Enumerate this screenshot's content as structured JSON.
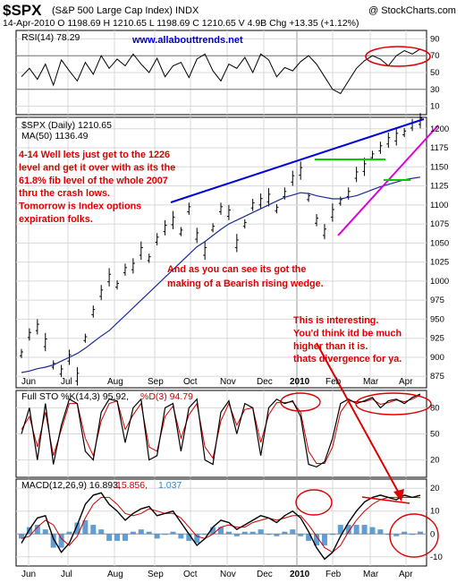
{
  "header": {
    "ticker": "$SPX",
    "name": "(S&P 500 Large Cap Index) INDX",
    "brand": "@ StockCharts.com",
    "quote": "14-Apr-2010   O 1198.69   H 1210.65   L 1198.69   C 1210.65   V 4.9B   Chg +13.35 (+1.12%)"
  },
  "colors": {
    "price": "#000000",
    "ma": "#1a2a9a",
    "trend_top": "#0000dd",
    "trend_bottom": "#dd00dd",
    "horizontal": "#00cc00",
    "annotation": "#dd0000",
    "website": "#0000cc",
    "macd_hist": "#3a86c8",
    "stoch_d": "#cc0000"
  },
  "chart_data": [
    {
      "type": "line",
      "panel": "rsi",
      "label": "RSI(14) 78.29",
      "website": "www.allabouttrends.net",
      "ylim": [
        0,
        100
      ],
      "y_ticks": [
        "90",
        "70",
        "50",
        "30",
        "10"
      ],
      "reference_lines": [
        70,
        30
      ],
      "months": [
        "Jun",
        "Jul",
        "Aug",
        "Sep",
        "Oct",
        "Nov",
        "Dec",
        "2010",
        "Feb",
        "Mar",
        "Apr"
      ],
      "values": [
        45,
        55,
        42,
        60,
        35,
        65,
        52,
        40,
        62,
        48,
        70,
        55,
        66,
        58,
        72,
        60,
        50,
        67,
        45,
        58,
        62,
        44,
        66,
        72,
        52,
        40,
        60,
        55,
        68,
        50,
        72,
        65,
        45,
        56,
        52,
        63,
        70,
        60,
        45,
        30,
        25,
        40,
        55,
        64,
        70,
        66,
        58,
        70,
        76,
        72,
        78
      ]
    },
    {
      "type": "line",
      "panel": "price",
      "label": "$SPX (Daily) 1210.65",
      "ma_label": "MA(50) 1136.49",
      "ylim": [
        860,
        1215
      ],
      "y_ticks": [
        "1200",
        "1175",
        "1150",
        "1125",
        "1100",
        "1075",
        "1050",
        "1025",
        "1000",
        "975",
        "950",
        "925",
        "900",
        "875"
      ],
      "x_labels": [
        "Jun",
        "Jul",
        "Aug",
        "Sep",
        "Oct",
        "Nov",
        "Dec",
        "2010",
        "Feb",
        "Mar",
        "Apr"
      ],
      "series": [
        {
          "name": "$SPX (Daily)",
          "values": [
            905,
            930,
            940,
            920,
            890,
            882,
            900,
            875,
            925,
            960,
            985,
            1005,
            995,
            1015,
            1020,
            1040,
            1030,
            1055,
            1070,
            1080,
            1065,
            1095,
            1060,
            1040,
            1070,
            1095,
            1090,
            1050,
            1075,
            1100,
            1105,
            1110,
            1095,
            1115,
            1135,
            1145,
            1110,
            1080,
            1065,
            1090,
            1105,
            1115,
            1140,
            1150,
            1165,
            1175,
            1185,
            1190,
            1195,
            1205,
            1210.65
          ]
        },
        {
          "name": "MA(50)",
          "values": [
            880,
            882,
            885,
            887,
            890,
            895,
            900,
            905,
            912,
            920,
            928,
            935,
            945,
            955,
            965,
            975,
            985,
            995,
            1005,
            1015,
            1025,
            1035,
            1045,
            1052,
            1060,
            1068,
            1075,
            1080,
            1085,
            1090,
            1095,
            1100,
            1105,
            1110,
            1113,
            1116,
            1115,
            1112,
            1110,
            1108,
            1108,
            1110,
            1112,
            1116,
            1120,
            1124,
            1127,
            1130,
            1133,
            1135,
            1136.49
          ]
        }
      ],
      "annotations": [
        "4-14 Well lets just get to the 1226",
        "level and get it over with as its the",
        "61.8% fib level of the whole 2007",
        "thru the crash lows.",
        "Tomorrow is Index options",
        "expiration folks."
      ],
      "annotation_wedge": [
        "And as you can see its got the",
        "making of a Bearish rising wedge."
      ],
      "annotation_divergence": [
        "This is interesting.",
        "You'd think itd be much",
        "higher than it is.",
        "thats divergence for ya."
      ]
    },
    {
      "type": "line",
      "panel": "stochastic",
      "label_k": "Full STO %K(14,3) 95.92,",
      "label_d": "%D(3) 94.79",
      "ylim": [
        0,
        100
      ],
      "y_ticks": [
        "80",
        "50",
        "20"
      ],
      "series": [
        {
          "name": "%K",
          "values": [
            50,
            80,
            20,
            85,
            15,
            60,
            90,
            85,
            30,
            20,
            75,
            90,
            88,
            40,
            80,
            90,
            20,
            25,
            80,
            85,
            30,
            80,
            90,
            20,
            15,
            75,
            88,
            50,
            85,
            80,
            25,
            80,
            90,
            85,
            88,
            70,
            15,
            12,
            18,
            45,
            85,
            90,
            85,
            88,
            92,
            80,
            88,
            90,
            85,
            92,
            95.92
          ]
        },
        {
          "name": "%D",
          "values": [
            55,
            70,
            35,
            75,
            25,
            55,
            85,
            85,
            45,
            25,
            65,
            85,
            88,
            55,
            72,
            85,
            35,
            30,
            70,
            82,
            45,
            72,
            85,
            35,
            22,
            65,
            85,
            60,
            78,
            80,
            40,
            72,
            86,
            86,
            87,
            75,
            30,
            16,
            16,
            35,
            75,
            88,
            87,
            87,
            90,
            84,
            86,
            89,
            87,
            90,
            94.79
          ]
        }
      ]
    },
    {
      "type": "line",
      "panel": "macd",
      "label": "MACD(12,26,9) 16.893,",
      "label_signal": "15.856,",
      "label_hist": "1.037",
      "ylim": [
        -14,
        24
      ],
      "y_ticks": [
        "20",
        "10",
        "0",
        "-10"
      ],
      "series": [
        {
          "name": "MACD",
          "values": [
            -4,
            2,
            7,
            8,
            -2,
            -8,
            -4,
            4,
            13,
            17,
            18,
            13,
            10,
            6,
            9,
            11,
            12,
            8,
            9,
            10,
            5,
            0,
            -5,
            -2,
            3,
            6,
            5,
            2,
            4,
            6,
            8,
            7,
            5,
            8,
            10,
            7,
            1,
            -6,
            -11,
            -8,
            -1,
            5,
            10,
            14,
            16,
            17,
            16,
            15,
            17,
            16,
            16.893
          ]
        },
        {
          "name": "Signal",
          "values": [
            -2,
            -1,
            3,
            6,
            4,
            -2,
            -5,
            -1,
            7,
            13,
            16,
            16,
            13,
            9,
            8,
            9,
            11,
            10,
            9,
            9,
            7,
            3,
            -1,
            -2,
            0,
            3,
            4,
            3,
            3,
            5,
            6,
            7,
            6,
            7,
            8,
            8,
            4,
            -1,
            -6,
            -8,
            -5,
            1,
            6,
            10,
            13,
            15,
            16,
            16,
            16,
            16,
            15.856
          ]
        }
      ]
    }
  ]
}
